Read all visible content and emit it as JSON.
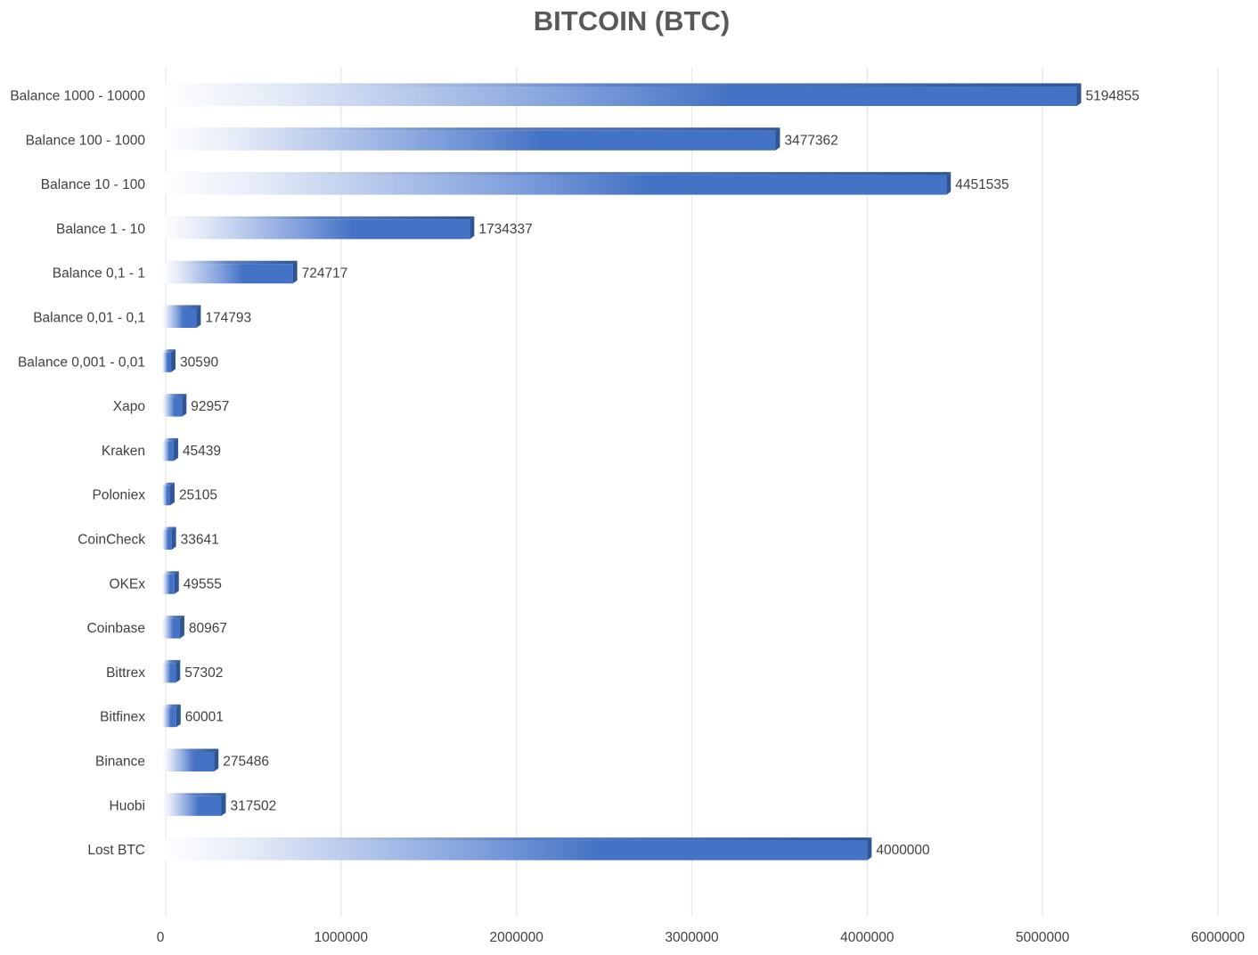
{
  "chart_data": {
    "type": "bar",
    "orientation": "horizontal",
    "title": "BITCOIN (BTC)",
    "xlabel": "",
    "ylabel": "",
    "xlim": [
      0,
      6000000
    ],
    "x_ticks": [
      "0",
      "1000000",
      "2000000",
      "3000000",
      "4000000",
      "5000000",
      "6000000"
    ],
    "grid": true,
    "legend": "none",
    "bar_color": "#4472c4",
    "bar_color_dark": "#2f5597",
    "categories": [
      "Balance 1000 - 10000",
      "Balance 100 - 1000",
      "Balance 10 - 100",
      "Balance 1 - 10",
      "Balance 0,1 - 1",
      "Balance 0,01 - 0,1",
      "Balance 0,001 - 0,01",
      "Xapo",
      "Kraken",
      "Poloniex",
      "CoinCheck",
      "OKEx",
      "Coinbase",
      "Bittrex",
      "Bitfinex",
      "Binance",
      "Huobi",
      "Lost BTC"
    ],
    "values": [
      5194855,
      3477362,
      4451535,
      1734337,
      724717,
      174793,
      30590,
      92957,
      45439,
      25105,
      33641,
      49555,
      80967,
      57302,
      60001,
      275486,
      317502,
      4000000
    ],
    "value_labels": [
      "5194855",
      "3477362",
      "4451535",
      "1734337",
      "724717",
      "174793",
      "30590",
      "92957",
      "45439",
      "25105",
      "33641",
      "49555",
      "80967",
      "57302",
      "60001",
      "275486",
      "317502",
      "4000000"
    ]
  }
}
